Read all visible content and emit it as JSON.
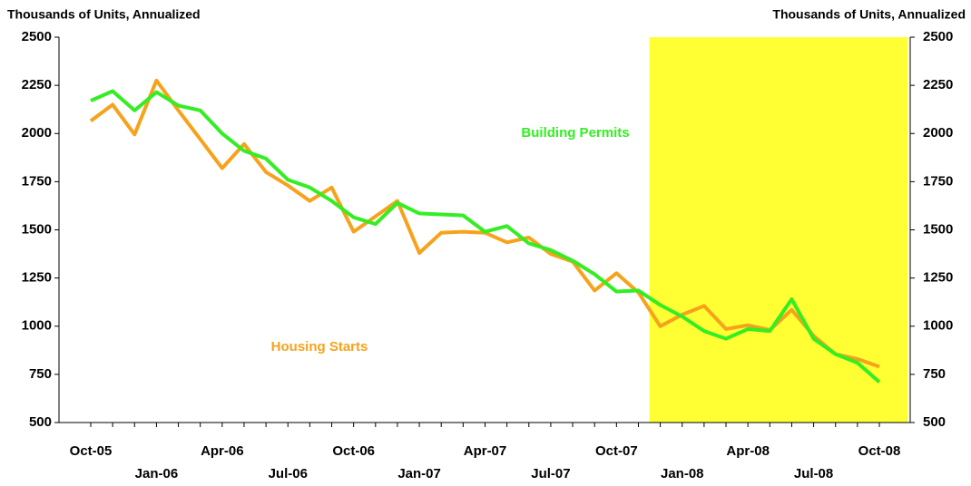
{
  "chart_data": {
    "type": "line",
    "y_axis_title": "Thousands of Units, Annualized",
    "y2_axis_title": "Thousands of Units, Annualized",
    "categories": [
      "Oct-05",
      null,
      null,
      "Jan-06",
      null,
      null,
      "Apr-06",
      null,
      null,
      "Jul-06",
      null,
      null,
      "Oct-06",
      null,
      null,
      "Jan-07",
      null,
      null,
      "Apr-07",
      null,
      null,
      "Jul-07",
      null,
      null,
      "Oct-07",
      null,
      null,
      "Jan-08",
      null,
      null,
      "Apr-08",
      null,
      null,
      "Jul-08",
      null,
      null,
      "Oct-08"
    ],
    "series": [
      {
        "name": "Housing Starts",
        "color": "#f7a21b",
        "values": [
          2065,
          2150,
          1995,
          2275,
          2120,
          1970,
          1820,
          1945,
          1800,
          1730,
          1650,
          1720,
          1490,
          1570,
          1650,
          1380,
          1485,
          1490,
          1485,
          1435,
          1460,
          1375,
          1335,
          1185,
          1275,
          1175,
          1000,
          1060,
          1105,
          985,
          1005,
          980,
          1085,
          950,
          855,
          830,
          790
        ]
      },
      {
        "name": "Building Permits",
        "color": "#33ee22",
        "values": [
          2170,
          2220,
          2120,
          2215,
          2145,
          2120,
          2000,
          1910,
          1870,
          1760,
          1720,
          1650,
          1565,
          1530,
          1640,
          1585,
          1580,
          1575,
          1490,
          1520,
          1430,
          1395,
          1340,
          1270,
          1180,
          1185,
          1110,
          1050,
          975,
          935,
          985,
          975,
          1140,
          935,
          855,
          810,
          710
        ]
      }
    ],
    "ylim": [
      500,
      2500
    ],
    "yticks": [
      500,
      750,
      1000,
      1250,
      1500,
      1750,
      2000,
      2250,
      2500
    ],
    "y2lim": [
      500,
      2500
    ],
    "y2ticks": [
      500,
      750,
      1000,
      1250,
      1500,
      1750,
      2000,
      2250,
      2500
    ],
    "shade": {
      "color": "#ffff33",
      "from": 25.5,
      "to": 37.3
    }
  }
}
